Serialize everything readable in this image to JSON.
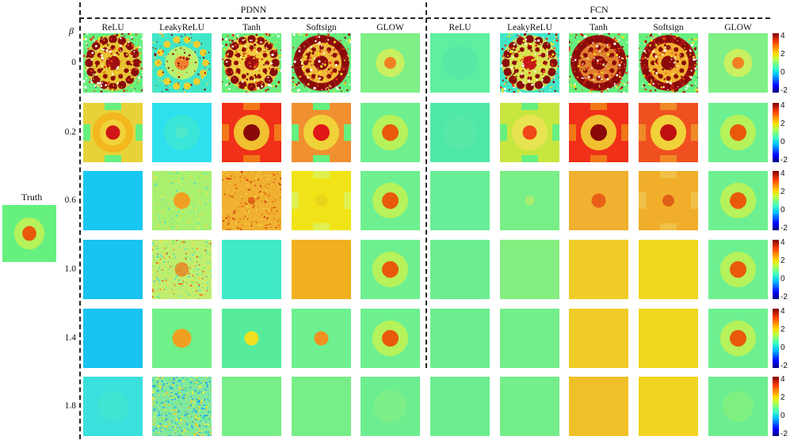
{
  "groups": {
    "pdnn": "PDNN",
    "fcn": "FCN"
  },
  "beta_symbol": "β",
  "column_labels": [
    "ReLU",
    "LeakyReLU",
    "Tanh",
    "Softsign",
    "GLOW",
    "ReLU",
    "LeakyReLU",
    "Tanh",
    "Softsign",
    "GLOW"
  ],
  "row_labels": [
    "0",
    "0.2",
    "0.6",
    "1.0",
    "1.4",
    "1.8"
  ],
  "truth_label": "Truth",
  "colorbar_ticks": [
    "4",
    "2",
    "0",
    "-2"
  ],
  "colors": {
    "background_field": "#66f07f",
    "ring": "#b6f25a",
    "core": "#e8590c",
    "cyan_field": "#19c8f0",
    "dark_red": "#8a0a0a",
    "yellow": "#f2e21a",
    "orange": "#f2a81a"
  }
}
